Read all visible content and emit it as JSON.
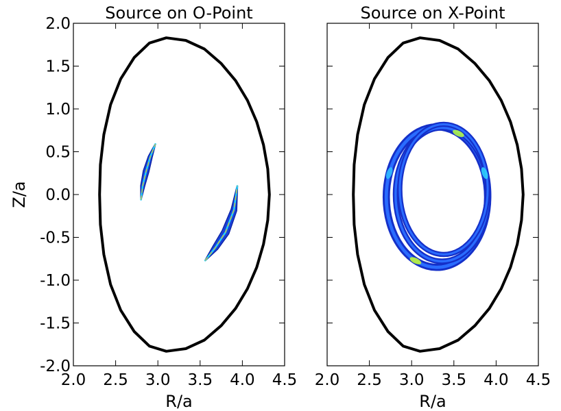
{
  "chart_data": [
    {
      "type": "contour",
      "title": "Source on O-Point",
      "xlabel": "R/a",
      "ylabel": "Z/a",
      "xlim": [
        2.0,
        4.5
      ],
      "ylim": [
        -2.0,
        2.0
      ],
      "xticks": [
        "2.0",
        "2.5",
        "3.0",
        "3.5",
        "4.0",
        "4.5"
      ],
      "yticks": [
        "2.0",
        "1.5",
        "1.0",
        "0.5",
        "0.0",
        "-0.5",
        "-1.0",
        "-1.5",
        "-2.0"
      ],
      "grid": false,
      "boundary": {
        "R": [
          4.32,
          4.3,
          4.25,
          4.17,
          4.06,
          3.92,
          3.75,
          3.55,
          3.33,
          3.1,
          2.9,
          2.72,
          2.56,
          2.44,
          2.36,
          2.32,
          2.31,
          2.32,
          2.36,
          2.44,
          2.56,
          2.72,
          2.9,
          3.1,
          3.33,
          3.55,
          3.75,
          3.92,
          4.06,
          4.17,
          4.25,
          4.3,
          4.32
        ],
        "Z": [
          0.0,
          -0.3,
          -0.58,
          -0.85,
          -1.1,
          -1.33,
          -1.53,
          -1.7,
          -1.8,
          -1.83,
          -1.77,
          -1.6,
          -1.35,
          -1.05,
          -0.7,
          -0.35,
          0.0,
          0.35,
          0.7,
          1.05,
          1.35,
          1.6,
          1.77,
          1.83,
          1.8,
          1.7,
          1.53,
          1.33,
          1.1,
          0.85,
          0.58,
          0.3,
          0.0
        ]
      },
      "islands": [
        {
          "center_R": [
            2.8,
            2.82,
            2.86,
            2.91,
            2.97
          ],
          "center_Z": [
            -0.06,
            0.1,
            0.27,
            0.44,
            0.59
          ],
          "width": [
            0.004,
            0.025,
            0.035,
            0.025,
            0.004
          ]
        },
        {
          "center_R": [
            3.56,
            3.68,
            3.8,
            3.9,
            3.94
          ],
          "center_Z": [
            -0.77,
            -0.62,
            -0.44,
            -0.18,
            0.1
          ],
          "width": [
            0.005,
            0.035,
            0.045,
            0.035,
            0.005
          ]
        }
      ]
    },
    {
      "type": "contour",
      "title": "Source on X-Point",
      "xlabel": "R/a",
      "ylabel": "",
      "xlim": [
        2.0,
        4.5
      ],
      "ylim": [
        -2.0,
        2.0
      ],
      "xticks": [
        "2.0",
        "2.5",
        "3.0",
        "3.5",
        "4.0",
        "4.5"
      ],
      "grid": false,
      "boundary": {
        "R": [
          4.32,
          4.3,
          4.25,
          4.17,
          4.06,
          3.92,
          3.75,
          3.55,
          3.33,
          3.1,
          2.9,
          2.72,
          2.56,
          2.44,
          2.36,
          2.32,
          2.31,
          2.32,
          2.36,
          2.44,
          2.56,
          2.72,
          2.9,
          3.1,
          3.33,
          3.55,
          3.75,
          3.92,
          4.06,
          4.17,
          4.25,
          4.3,
          4.32
        ],
        "Z": [
          0.0,
          -0.3,
          -0.58,
          -0.85,
          -1.1,
          -1.33,
          -1.53,
          -1.7,
          -1.8,
          -1.83,
          -1.77,
          -1.6,
          -1.35,
          -1.05,
          -0.7,
          -0.35,
          0.0,
          0.35,
          0.7,
          1.05,
          1.35,
          1.6,
          1.77,
          1.83,
          1.8,
          1.7,
          1.53,
          1.33,
          1.1,
          0.85,
          0.58,
          0.3,
          0.0
        ]
      },
      "rings": [
        {
          "R0": 3.3,
          "Z0": -0.03,
          "aR": 0.6,
          "aZ": 0.82,
          "thickness": 0.07
        },
        {
          "R0": 3.36,
          "Z0": 0.0,
          "aR": 0.55,
          "aZ": 0.78,
          "thickness": 0.05
        },
        {
          "R0": 3.38,
          "Z0": 0.06,
          "aR": 0.52,
          "aZ": 0.76,
          "thickness": 0.045
        }
      ]
    }
  ]
}
